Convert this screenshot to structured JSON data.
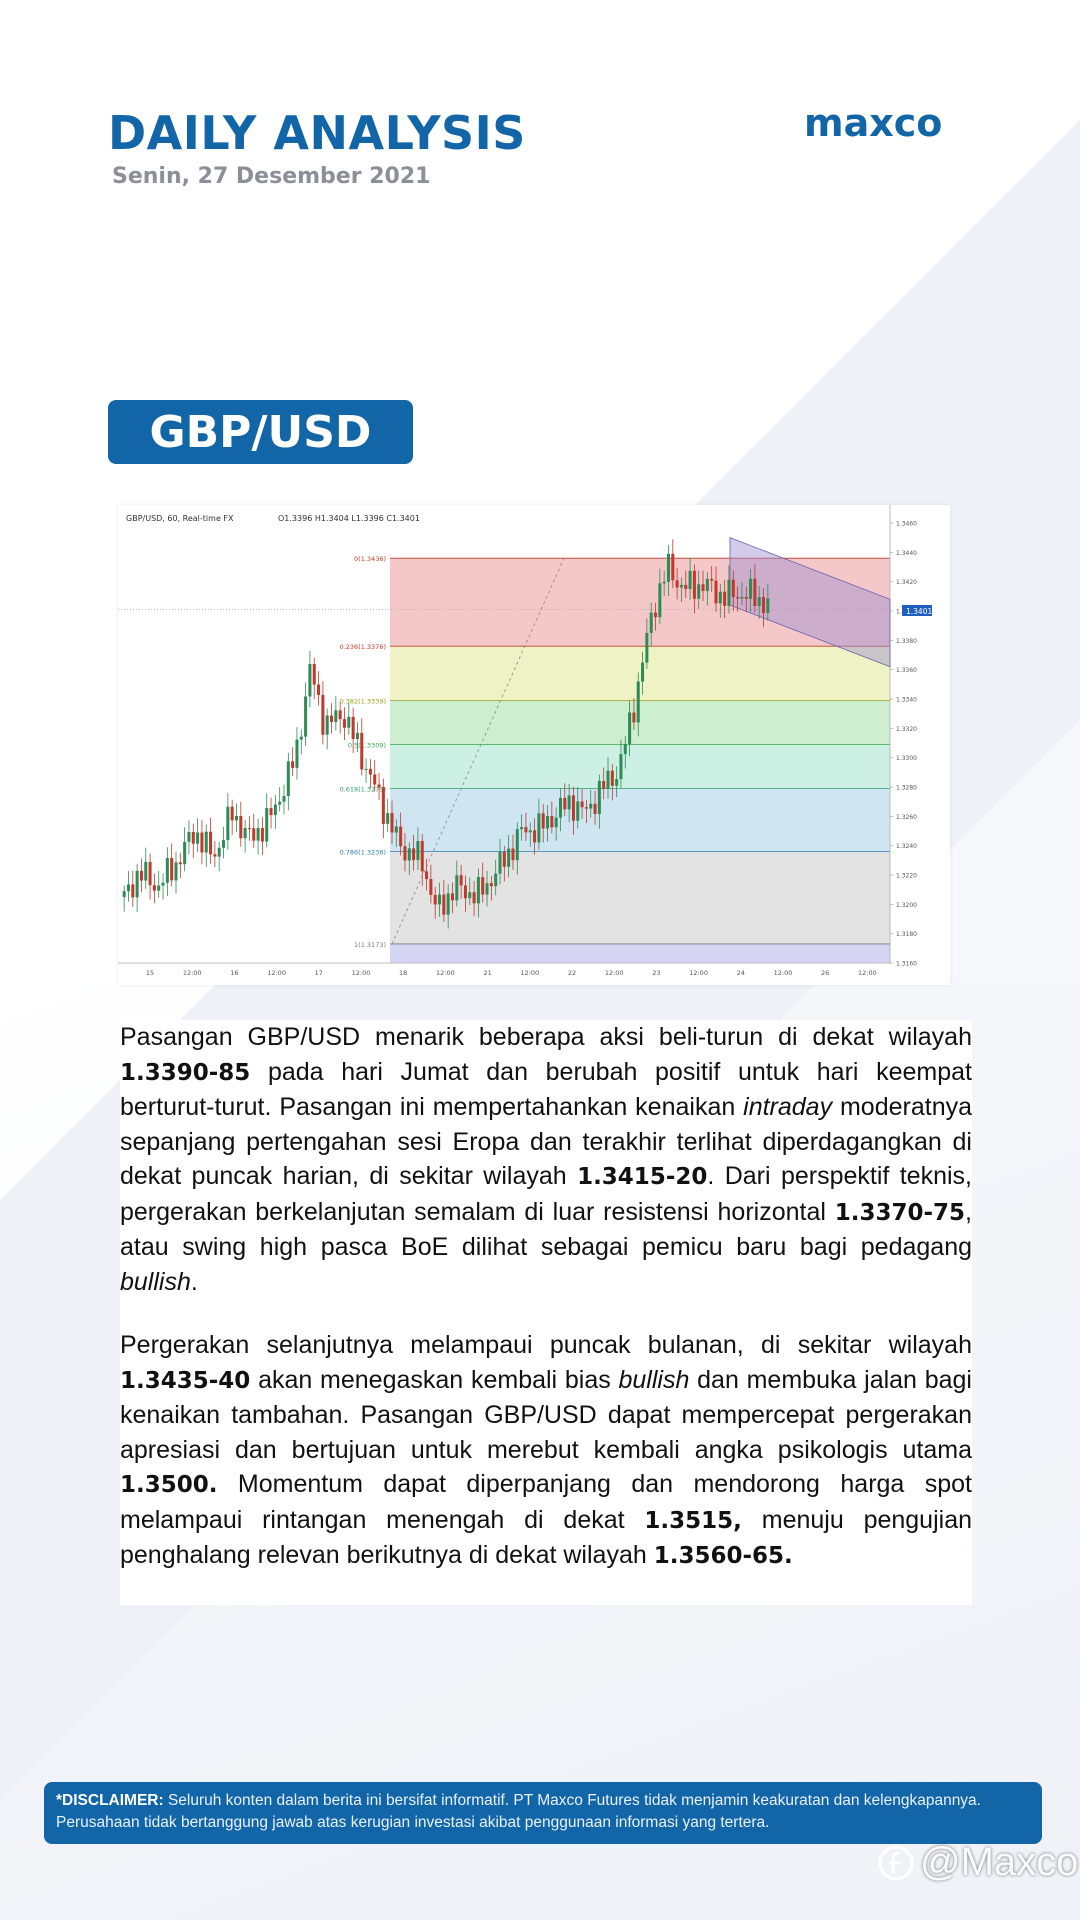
{
  "header": {
    "title": "DAILY ANALYSIS",
    "date": "Senin, 27 Desember 2021",
    "logo_text": "maxco"
  },
  "pair": "GBP/USD",
  "chart": {
    "symbol_line": "GBP/USD, 60, Real-time FX",
    "ohlc": "O1.3396  H1.3404  L1.3396  C1.3401",
    "price_label": "1.3401",
    "fib_levels": [
      {
        "label": "0(1.3436)",
        "price": 1.3436
      },
      {
        "label": "0.236(1.3376)",
        "price": 1.3376
      },
      {
        "label": "0.382(1.3339)",
        "price": 1.3339
      },
      {
        "label": "0.5(1.3309)",
        "price": 1.3309
      },
      {
        "label": "0.618(1.3279)",
        "price": 1.3279
      },
      {
        "label": "0.786(1.3236)",
        "price": 1.3236
      },
      {
        "label": "1(1.3173)",
        "price": 1.3173
      }
    ],
    "y_ticks": [
      "1.3460",
      "1.3440",
      "1.3420",
      "1.3400",
      "1.3380",
      "1.3360",
      "1.3340",
      "1.3320",
      "1.3300",
      "1.3280",
      "1.3260",
      "1.3240",
      "1.3220",
      "1.3200",
      "1.3180",
      "1.3160"
    ],
    "x_ticks": [
      "15",
      "12:00",
      "16",
      "12:00",
      "17",
      "12:00",
      "18",
      "12:00",
      "21",
      "12:00",
      "22",
      "12:00",
      "23",
      "12:00",
      "24",
      "12:00",
      "26",
      "12:00"
    ],
    "colors": {
      "fib_red": "#f4c8c8",
      "fib_yellow": "#eef2c4",
      "fib_green": "#cdeecf",
      "fib_mint": "#cdf0e4",
      "fib_blue": "#cfe6f2",
      "fib_grey": "#e3e3e3",
      "channel": "#9b8fd1",
      "bull": "#2e8b57",
      "bear": "#c0392b"
    }
  },
  "article": {
    "p1": [
      {
        "t": "Pasangan GBP/USD menarik beberapa aksi beli-turun di dekat wilayah "
      },
      {
        "b": "1.3390-85"
      },
      {
        "t": " pada hari Jumat dan berubah positif untuk hari keempat berturut-turut. Pasangan ini mempertahankan kenaikan "
      },
      {
        "i": "intraday"
      },
      {
        "t": " moderatnya sepanjang pertengahan sesi Eropa dan terakhir terlihat diperdagangkan di dekat puncak harian, di sekitar wilayah "
      },
      {
        "b": "1.3415-20"
      },
      {
        "t": ". Dari perspektif teknis, pergerakan berkelanjutan semalam di luar resistensi horizontal "
      },
      {
        "b": "1.3370-75"
      },
      {
        "t": ", atau swing high pasca BoE dilihat sebagai pemicu baru bagi pedagang "
      },
      {
        "i": "bullish"
      },
      {
        "t": "."
      }
    ],
    "p2": [
      {
        "t": "Pergerakan selanjutnya melampaui puncak bulanan, di sekitar wilayah "
      },
      {
        "b": "1.3435-40"
      },
      {
        "t": " akan menegaskan kembali bias "
      },
      {
        "i": "bullish"
      },
      {
        "t": " dan membuka jalan bagi kenaikan tambahan. Pasangan GBP/USD dapat mempercepat pergerakan apresiasi dan bertujuan untuk merebut kembali angka psikologis utama "
      },
      {
        "b": "1.3500."
      },
      {
        "t": " Momentum dapat diperpanjang dan mendorong harga spot melampaui rintangan menengah di dekat "
      },
      {
        "b": "1.3515,"
      },
      {
        "t": " menuju pengujian penghalang relevan berikutnya di dekat wilayah "
      },
      {
        "b": "1.3560-65."
      }
    ]
  },
  "disclaimer": {
    "label": "*DISCLAIMER:",
    "text": " Seluruh konten dalam berita ini bersifat informatif. PT Maxco Futures tidak menjamin keakuratan dan kelengkapannya. Perusahaan tidak bertanggung jawab atas kerugian investasi akibat penggunaan informasi yang tertera."
  },
  "watermark": "@Maxco"
}
